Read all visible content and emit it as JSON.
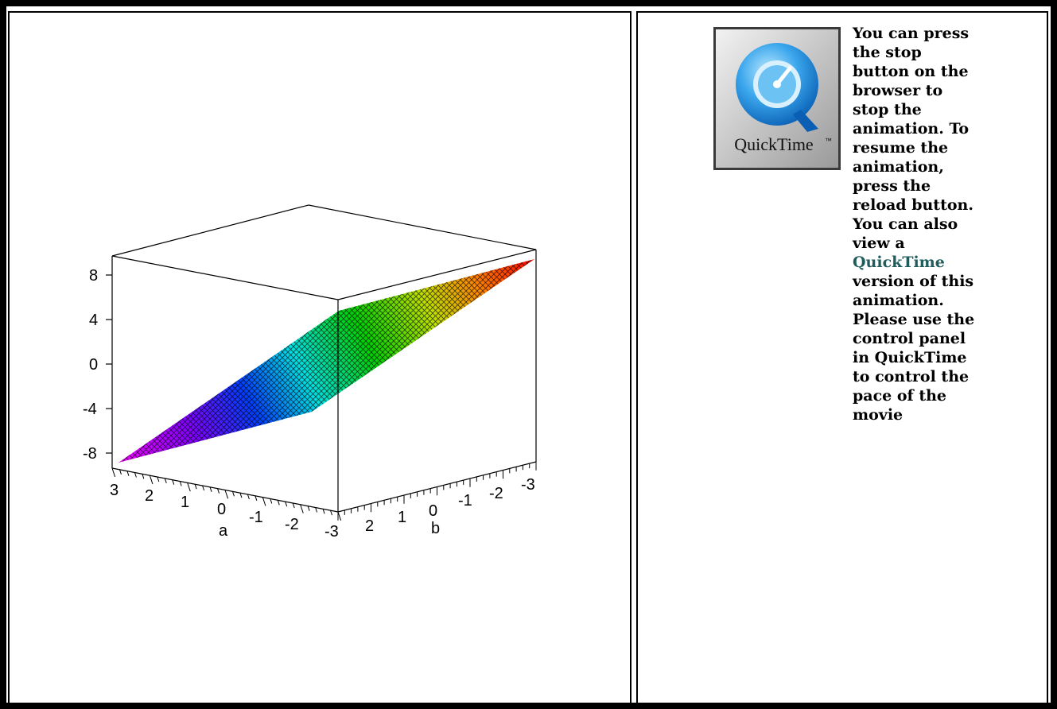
{
  "plot": {
    "z_ticks": [
      "8",
      "4",
      "0",
      "-4",
      "-8"
    ],
    "a_ticks": [
      "3",
      "2",
      "1",
      "0",
      "-1",
      "-2",
      "-3"
    ],
    "b_ticks": [
      "2",
      "1",
      "0",
      "-1",
      "-2",
      "-3"
    ],
    "a_label": "a",
    "b_label": "b"
  },
  "chart_data": {
    "type": "surface",
    "xlabel": "a",
    "ylabel": "b",
    "zlabel": "",
    "xlim": [
      -3,
      3
    ],
    "ylim": [
      -3,
      3
    ],
    "zlim": [
      -9,
      9
    ],
    "x_ticks": [
      3,
      2,
      1,
      0,
      -1,
      -2,
      -3
    ],
    "y_ticks": [
      2,
      1,
      0,
      -1,
      -2,
      -3
    ],
    "z_ticks": [
      8,
      4,
      0,
      -4,
      -8
    ],
    "grid": false,
    "colormap": [
      "#ff00ff",
      "#0000ff",
      "#00ffff",
      "#00ff00",
      "#ffff00",
      "#ff0000"
    ]
  },
  "sidebar": {
    "logo_icon": "quicktime-logo-icon",
    "logo_wordmark": "QuickTime",
    "logo_tm": "™",
    "text_before_link": "You can press the stop button on the browser to stop the animation. To resume the animation, press the reload button. You can also view a ",
    "link_text": "QuickTime",
    "text_after_link": " version of this animation. Please use the control panel in QuickTime to control the pace of the movie"
  }
}
